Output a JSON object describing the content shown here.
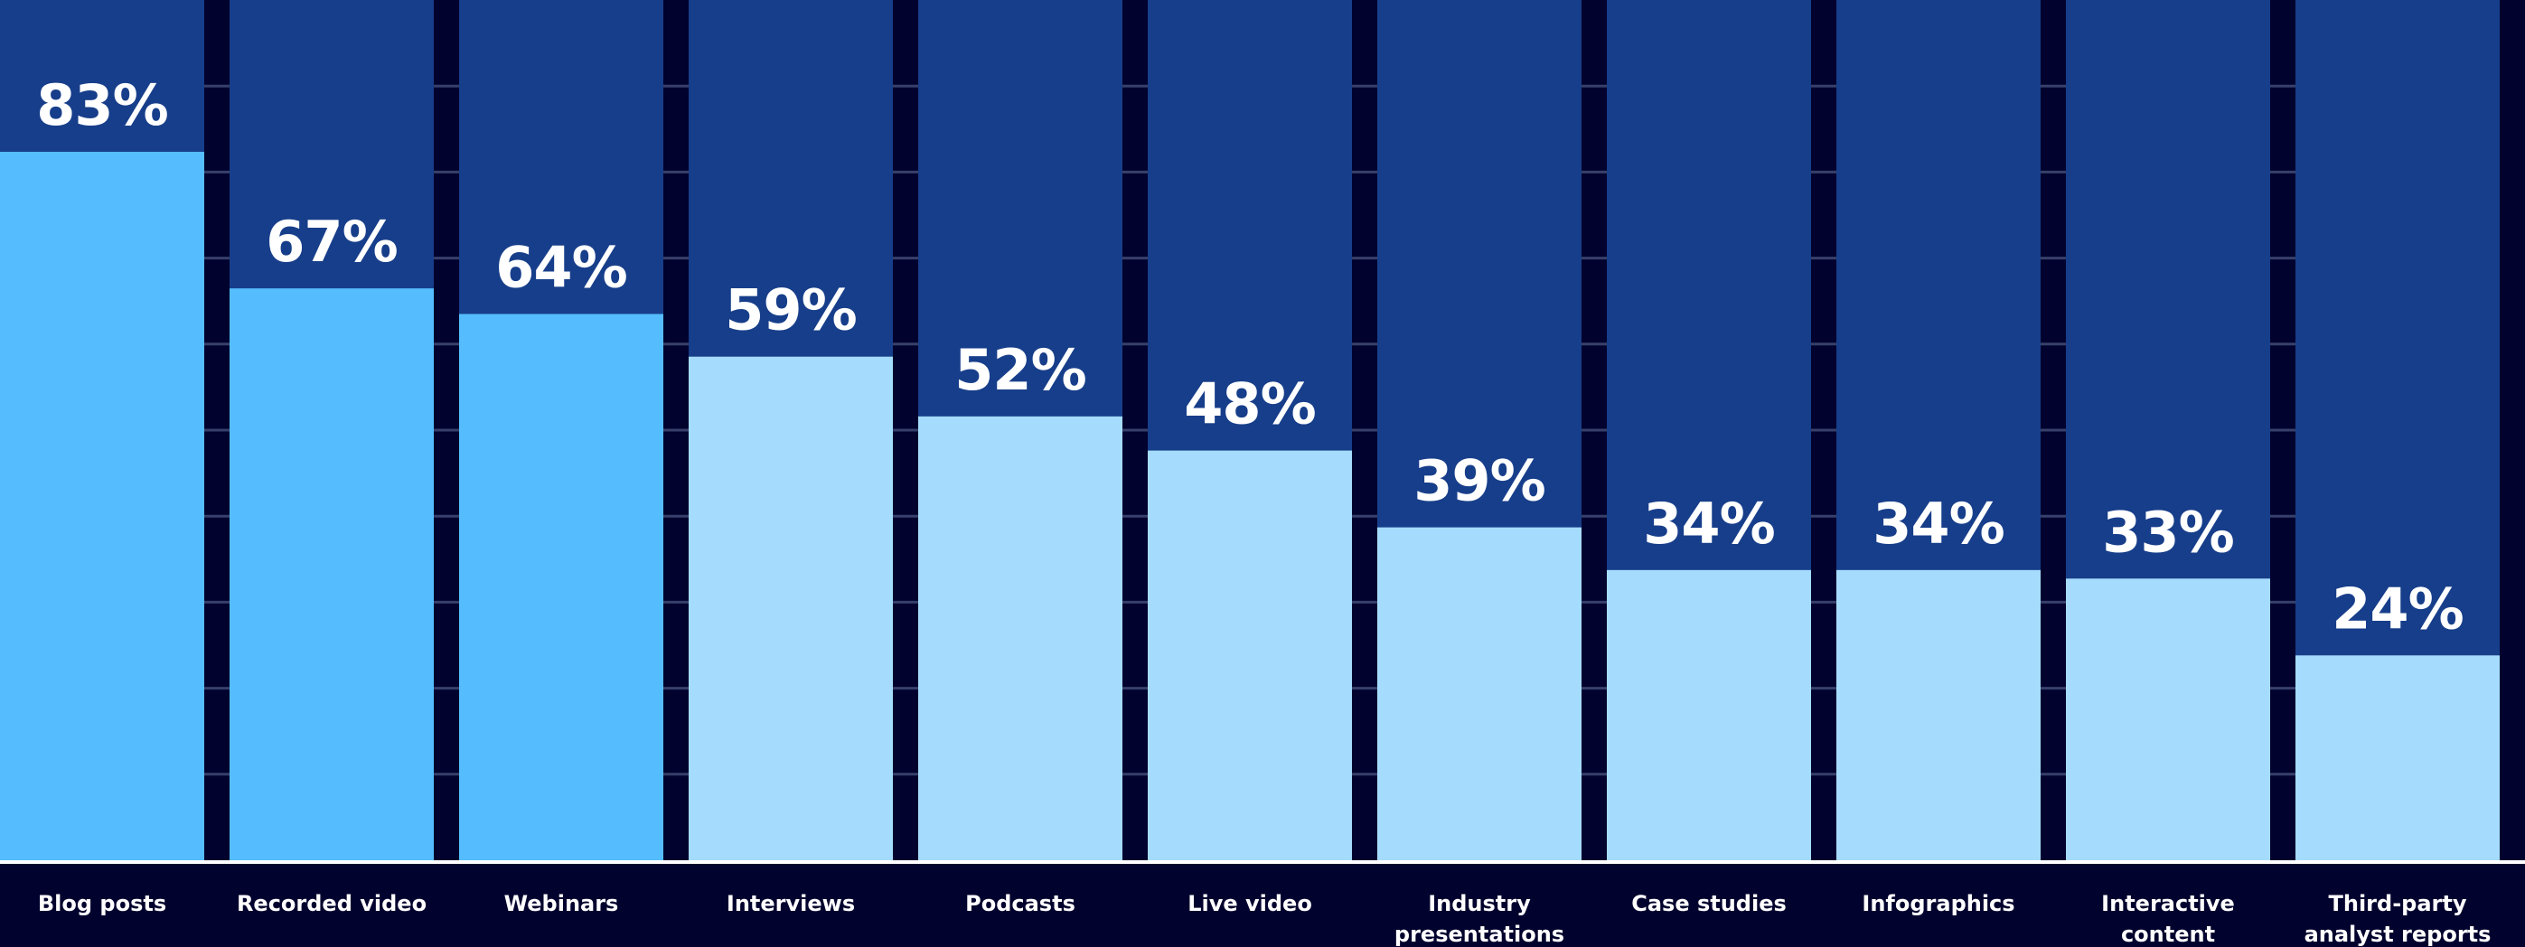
{
  "chart_data": {
    "type": "bar",
    "categories": [
      [
        "Blog posts"
      ],
      [
        "Recorded video"
      ],
      [
        "Webinars"
      ],
      [
        "Interviews"
      ],
      [
        "Podcasts"
      ],
      [
        "Live video"
      ],
      [
        "Industry",
        "presentations"
      ],
      [
        "Case studies"
      ],
      [
        "Infographics"
      ],
      [
        "Interactive",
        "content"
      ],
      [
        "Third-party",
        "analyst reports"
      ]
    ],
    "values": [
      83,
      67,
      64,
      59,
      52,
      48,
      39,
      34,
      34,
      33,
      24
    ],
    "value_labels": [
      "83%",
      "67%",
      "64%",
      "59%",
      "52%",
      "48%",
      "39%",
      "34%",
      "34%",
      "33%",
      "24%"
    ],
    "highlighted": [
      true,
      true,
      true,
      false,
      false,
      false,
      false,
      false,
      false,
      false,
      false
    ],
    "ylim": [
      0,
      100
    ],
    "grid": true,
    "colors": {
      "background": "#02022e",
      "bar_track": "#173e8a",
      "bar_highlight": "#55bdfd",
      "bar_default": "#a5dcfd",
      "label_text": "#ffffff",
      "gridline": "#36406a"
    }
  }
}
